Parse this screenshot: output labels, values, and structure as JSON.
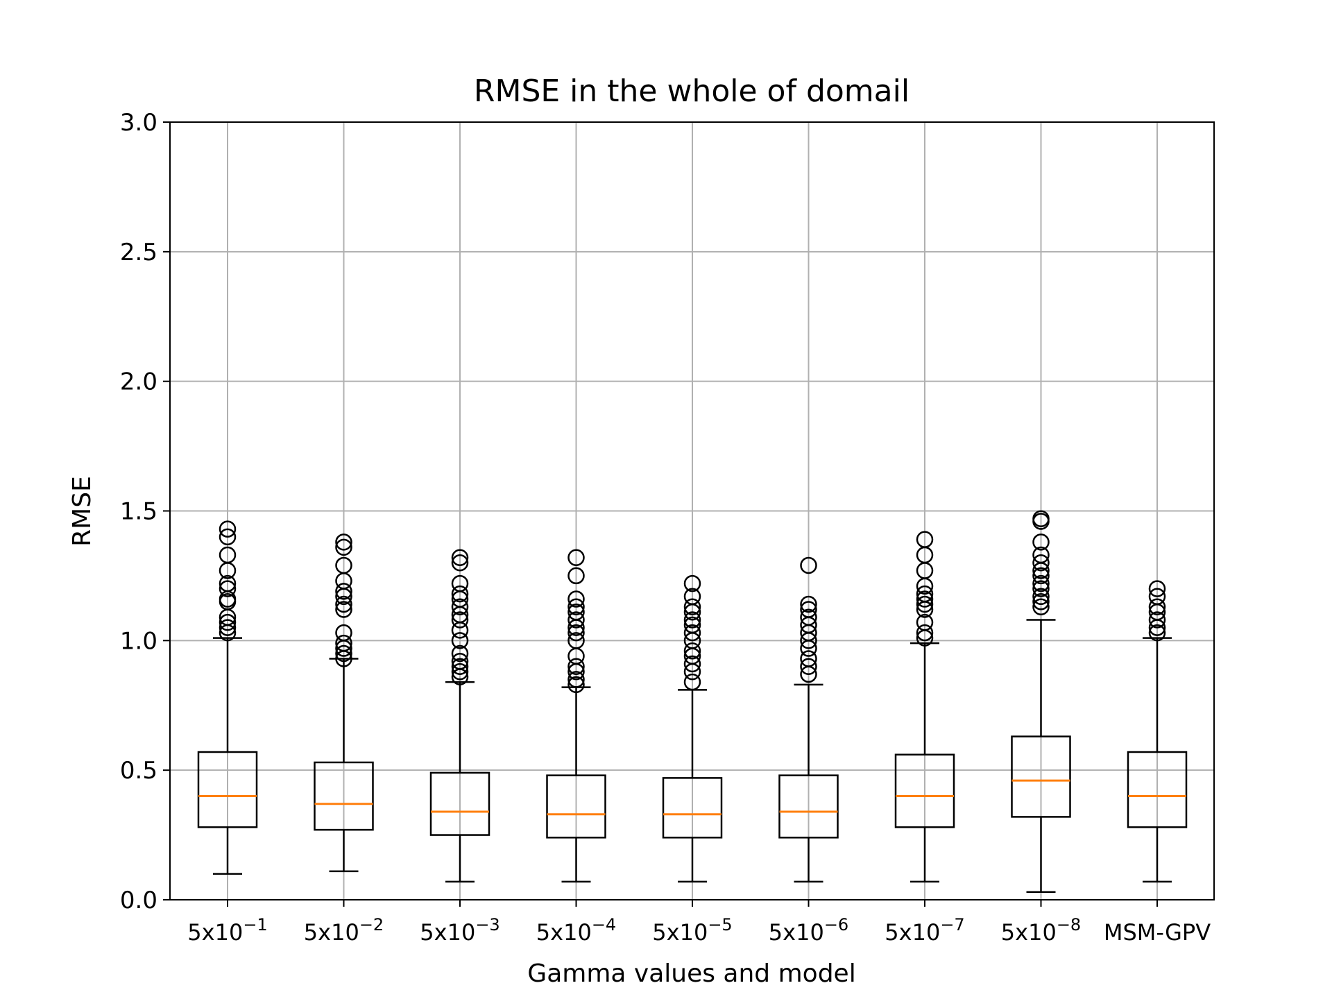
{
  "chart_data": {
    "type": "box",
    "title": "RMSE in the whole of domail",
    "xlabel": "Gamma values and model",
    "ylabel": "RMSE",
    "ylim": [
      0.0,
      3.0
    ],
    "yticks": [
      0.0,
      0.5,
      1.0,
      1.5,
      2.0,
      2.5,
      3.0
    ],
    "ytick_labels": [
      "0.0",
      "0.5",
      "1.0",
      "1.5",
      "2.0",
      "2.5",
      "3.0"
    ],
    "grid": true,
    "categories": [
      {
        "base": "5x10",
        "exp": "−1"
      },
      {
        "base": "5x10",
        "exp": "−2"
      },
      {
        "base": "5x10",
        "exp": "−3"
      },
      {
        "base": "5x10",
        "exp": "−4"
      },
      {
        "base": "5x10",
        "exp": "−5"
      },
      {
        "base": "5x10",
        "exp": "−6"
      },
      {
        "base": "5x10",
        "exp": "−7"
      },
      {
        "base": "5x10",
        "exp": "−8"
      },
      {
        "base": "MSM-GPV",
        "exp": ""
      }
    ],
    "boxes": [
      {
        "whisker_low": 0.1,
        "q1": 0.28,
        "median": 0.4,
        "q3": 0.57,
        "whisker_high": 1.01,
        "outliers": [
          1.03,
          1.05,
          1.07,
          1.09,
          1.15,
          1.16,
          1.2,
          1.22,
          1.27,
          1.33,
          1.4,
          1.43
        ]
      },
      {
        "whisker_low": 0.11,
        "q1": 0.27,
        "median": 0.37,
        "q3": 0.53,
        "whisker_high": 0.93,
        "outliers": [
          0.93,
          0.95,
          0.97,
          0.99,
          1.03,
          1.12,
          1.14,
          1.17,
          1.19,
          1.23,
          1.29,
          1.36,
          1.38
        ]
      },
      {
        "whisker_low": 0.07,
        "q1": 0.25,
        "median": 0.34,
        "q3": 0.49,
        "whisker_high": 0.84,
        "outliers": [
          0.86,
          0.88,
          0.9,
          0.92,
          0.95,
          1.0,
          1.04,
          1.08,
          1.1,
          1.13,
          1.16,
          1.18,
          1.22,
          1.3,
          1.32
        ]
      },
      {
        "whisker_low": 0.07,
        "q1": 0.24,
        "median": 0.33,
        "q3": 0.48,
        "whisker_high": 0.82,
        "outliers": [
          0.83,
          0.85,
          0.88,
          0.9,
          0.94,
          1.0,
          1.03,
          1.05,
          1.08,
          1.11,
          1.13,
          1.16,
          1.25,
          1.32
        ]
      },
      {
        "whisker_low": 0.07,
        "q1": 0.24,
        "median": 0.33,
        "q3": 0.47,
        "whisker_high": 0.81,
        "outliers": [
          0.84,
          0.88,
          0.91,
          0.94,
          0.96,
          1.0,
          1.03,
          1.06,
          1.08,
          1.11,
          1.13,
          1.17,
          1.22
        ]
      },
      {
        "whisker_low": 0.07,
        "q1": 0.24,
        "median": 0.34,
        "q3": 0.48,
        "whisker_high": 0.83,
        "outliers": [
          0.87,
          0.9,
          0.93,
          0.97,
          1.0,
          1.03,
          1.06,
          1.09,
          1.12,
          1.14,
          1.29
        ]
      },
      {
        "whisker_low": 0.07,
        "q1": 0.28,
        "median": 0.4,
        "q3": 0.56,
        "whisker_high": 0.99,
        "outliers": [
          1.01,
          1.03,
          1.07,
          1.12,
          1.14,
          1.16,
          1.18,
          1.21,
          1.27,
          1.33,
          1.39
        ]
      },
      {
        "whisker_low": 0.03,
        "q1": 0.32,
        "median": 0.46,
        "q3": 0.63,
        "whisker_high": 1.08,
        "outliers": [
          1.13,
          1.15,
          1.17,
          1.2,
          1.22,
          1.25,
          1.27,
          1.3,
          1.33,
          1.38,
          1.46,
          1.47
        ]
      },
      {
        "whisker_low": 0.07,
        "q1": 0.28,
        "median": 0.4,
        "q3": 0.57,
        "whisker_high": 1.01,
        "outliers": [
          1.03,
          1.05,
          1.08,
          1.11,
          1.13,
          1.17,
          1.2
        ]
      }
    ],
    "colors": {
      "box": "#000000",
      "median": "#ff7f0e",
      "grid": "#b0b0b0",
      "outlier": "#000000"
    }
  }
}
